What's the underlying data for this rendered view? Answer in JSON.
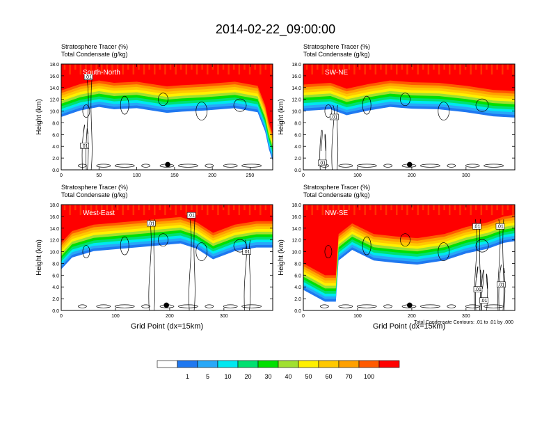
{
  "title": "2014-02-22_09:00:00",
  "colors": {
    "contour": "#000000",
    "levels": [
      "#ffffff",
      "#1f78f0",
      "#28a8f8",
      "#00e8f0",
      "#00e070",
      "#00e000",
      "#a0e030",
      "#fff000",
      "#ffc800",
      "#ffa000",
      "#ff5a00",
      "#ff0000"
    ]
  },
  "chart_data": [
    {
      "type": "heatmap",
      "panel_label": "South-North",
      "line1": "Stratosphere Tracer   (%)",
      "line2": "Total Condensate   (g/kg)",
      "ylabel": "Height (km)",
      "xlabel": "",
      "xlim": [
        0,
        280
      ],
      "xticks": [
        0,
        50,
        100,
        150,
        200,
        250
      ],
      "ylim": [
        0,
        18
      ],
      "yticks": [
        "0.0",
        "2.0",
        "4.0",
        "6.0",
        "8.0",
        "10.0",
        "12.0",
        "14.0",
        "16.0",
        "18.0"
      ],
      "marker_x": 141,
      "contour_labels": [
        {
          "text": ".01",
          "x": 36,
          "y": 15.8
        },
        {
          "text": ".01",
          "x": 31,
          "y": 4.1
        }
      ],
      "tropopause": [
        [
          0,
          13.5
        ],
        [
          25,
          14.6
        ],
        [
          50,
          15.2
        ],
        [
          70,
          14.8
        ],
        [
          100,
          15.0
        ],
        [
          140,
          14.2
        ],
        [
          160,
          14.4
        ],
        [
          190,
          14.6
        ],
        [
          230,
          15.0
        ],
        [
          260,
          14.3
        ],
        [
          270,
          11.0
        ],
        [
          275,
          8.0
        ],
        [
          280,
          6.0
        ]
      ]
    },
    {
      "type": "heatmap",
      "panel_label": "SW-NE",
      "line1": "Stratosphere Tracer   (%)",
      "line2": "Total Condensate   (g/kg)",
      "ylabel": "Height (km)",
      "xlabel": "",
      "xlim": [
        0,
        390
      ],
      "xticks": [
        0,
        100,
        200,
        300
      ],
      "ylim": [
        0,
        18
      ],
      "yticks": [
        "0.0",
        "2.0",
        "4.0",
        "6.0",
        "8.0",
        "10.0",
        "12.0",
        "14.0",
        "16.0",
        "18.0"
      ],
      "marker_x": 196,
      "contour_labels": [
        {
          "text": ".01",
          "x": 57,
          "y": 9.0
        },
        {
          "text": ".01",
          "x": 35,
          "y": 1.2
        }
      ],
      "tropopause": [
        [
          0,
          14.5
        ],
        [
          50,
          14.8
        ],
        [
          80,
          13.8
        ],
        [
          120,
          14.6
        ],
        [
          160,
          15.2
        ],
        [
          200,
          14.9
        ],
        [
          250,
          14.8
        ],
        [
          300,
          14.3
        ],
        [
          350,
          13.6
        ],
        [
          390,
          13.4
        ]
      ]
    },
    {
      "type": "heatmap",
      "panel_label": "West-East",
      "line1": "Stratosphere Tracer   (%)",
      "line2": "Total Condensate   (g/kg)",
      "ylabel": "Height (km)",
      "xlabel": "Grid Point (dx=15km)",
      "xlim": [
        0,
        390
      ],
      "xticks": [
        0,
        100,
        200,
        300
      ],
      "ylim": [
        0,
        18
      ],
      "yticks": [
        "0.0",
        "2.0",
        "4.0",
        "6.0",
        "8.0",
        "10.0",
        "12.0",
        "14.0",
        "16.0",
        "18.0"
      ],
      "marker_x": 194,
      "contour_labels": [
        {
          "text": ".01",
          "x": 166,
          "y": 14.8
        },
        {
          "text": ".01",
          "x": 240,
          "y": 16.2
        },
        {
          "text": ".01",
          "x": 342,
          "y": 10.0
        }
      ],
      "tropopause": [
        [
          0,
          11.5
        ],
        [
          20,
          13.5
        ],
        [
          60,
          14.6
        ],
        [
          110,
          15.0
        ],
        [
          160,
          15.4
        ],
        [
          220,
          15.9
        ],
        [
          250,
          15.0
        ],
        [
          280,
          13.2
        ],
        [
          320,
          14.6
        ],
        [
          360,
          15.2
        ],
        [
          390,
          15.2
        ]
      ]
    },
    {
      "type": "heatmap",
      "panel_label": "NW-SE",
      "line1": "Stratosphere Tracer   (%)",
      "line2": "Total Condensate   (g/kg)",
      "ylabel": "Height (km)",
      "xlabel": "Grid Point (dx=15km)",
      "footnote": "Total Condensate Contours: .01 to .01 by .000",
      "xlim": [
        0,
        390
      ],
      "xticks": [
        0,
        100,
        200,
        300
      ],
      "ylim": [
        0,
        18
      ],
      "yticks": [
        "0.0",
        "2.0",
        "4.0",
        "6.0",
        "8.0",
        "10.0",
        "12.0",
        "14.0",
        "16.0",
        "18.0"
      ],
      "marker_x": 196,
      "contour_labels": [
        {
          "text": ".01",
          "x": 320,
          "y": 14.3
        },
        {
          "text": ".01",
          "x": 363,
          "y": 14.3
        },
        {
          "text": ".01",
          "x": 322,
          "y": 3.6
        },
        {
          "text": ".01",
          "x": 365,
          "y": 4.4
        },
        {
          "text": ".01",
          "x": 333,
          "y": 1.7
        }
      ],
      "tropopause": [
        [
          0,
          8.0
        ],
        [
          40,
          6.0
        ],
        [
          60,
          6.0
        ],
        [
          65,
          13.0
        ],
        [
          90,
          14.8
        ],
        [
          130,
          13.0
        ],
        [
          170,
          12.6
        ],
        [
          210,
          12.3
        ],
        [
          260,
          13.0
        ],
        [
          300,
          14.2
        ],
        [
          340,
          15.0
        ],
        [
          370,
          16.0
        ],
        [
          390,
          16.3
        ]
      ]
    }
  ],
  "colorbar": {
    "labels": [
      "1",
      "5",
      "10",
      "20",
      "30",
      "40",
      "50",
      "60",
      "70",
      "100"
    ]
  }
}
